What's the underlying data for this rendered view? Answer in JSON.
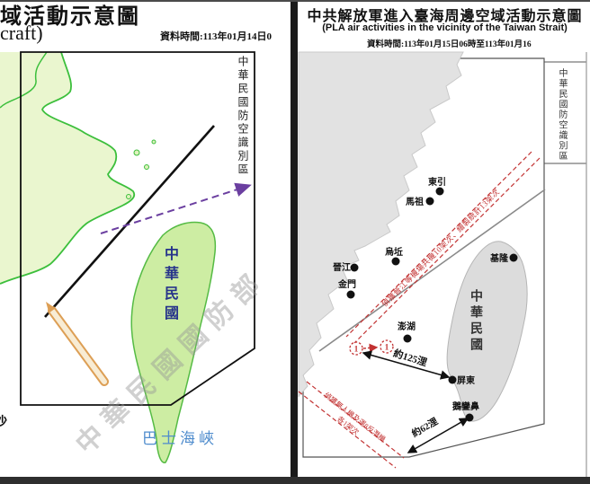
{
  "left_panel": {
    "title_fragment": "域活動示意圖",
    "subtitle_fragment": "craft)",
    "data_time": "資料時間:113年01月14日0",
    "adiz_label": "中華民國防空識別區",
    "taiwan_label": "中華民國",
    "strait_label": "巴士海峽",
    "edge_label_fragment": "沙",
    "watermark": "中華民國國防部"
  },
  "right_panel": {
    "title_zh": "中共解放軍進入臺海周邊空域活動示意圖",
    "title_en": "(PLA air activities in the vicinity of the Taiwan Strait)",
    "data_time": "資料時間:113年01月15日06時至113年01月16",
    "adiz_label": "中華民國防空識別區",
    "taiwan_label": "中華民國",
    "median_line_note": "偵獲晉江等機場共機10架次、繪製統計13架次",
    "southwest_note_line1": "偵獲無人機及運8反潛機",
    "southwest_note_line2": "各1架次",
    "track_marker_1": "1",
    "track_marker_2": "1",
    "distance_label_pingtung": "約125浬",
    "distance_label_eluanbi": "約62浬",
    "locations": [
      {
        "name": "東引",
        "dot": [
          489,
          213
        ],
        "label": [
          486,
          206
        ],
        "anchor": "middle"
      },
      {
        "name": "馬祖",
        "dot": [
          478,
          224
        ],
        "label": [
          461,
          228
        ],
        "anchor": "middle"
      },
      {
        "name": "烏坵",
        "dot": [
          440,
          291
        ],
        "label": [
          438,
          284
        ],
        "anchor": "middle"
      },
      {
        "name": "晉江",
        "dot": [
          394,
          298
        ],
        "label": [
          380,
          301
        ],
        "anchor": "middle"
      },
      {
        "name": "金門",
        "dot": [
          390,
          328
        ],
        "label": [
          386,
          320
        ],
        "anchor": "middle"
      },
      {
        "name": "澎湖",
        "dot": [
          453,
          377
        ],
        "label": [
          452,
          367
        ],
        "anchor": "middle"
      },
      {
        "name": "基隆",
        "dot": [
          571,
          287
        ],
        "label": [
          555,
          291
        ],
        "anchor": "middle"
      },
      {
        "name": "屏東",
        "dot": [
          503,
          423
        ],
        "label": [
          518,
          427
        ],
        "anchor": "middle"
      },
      {
        "name": "鵝鑾鼻",
        "dot": [
          522,
          465
        ],
        "label": [
          518,
          456
        ],
        "anchor": "middle"
      }
    ]
  },
  "colors": {
    "mainland_green_fill": "#eaf6cf",
    "coast_green": "#3cbf3c",
    "taiwan_left_fill": "#cdeda3",
    "taiwan_label_blue": "#27348b",
    "strait_blue": "#4f8ccd",
    "purple_track": "#6b3fa0",
    "orange_track": "#dd9f55",
    "grey_land": "#e2e2e2",
    "red_annotation": "#c23232",
    "median_grey": "#8a8a8a"
  }
}
